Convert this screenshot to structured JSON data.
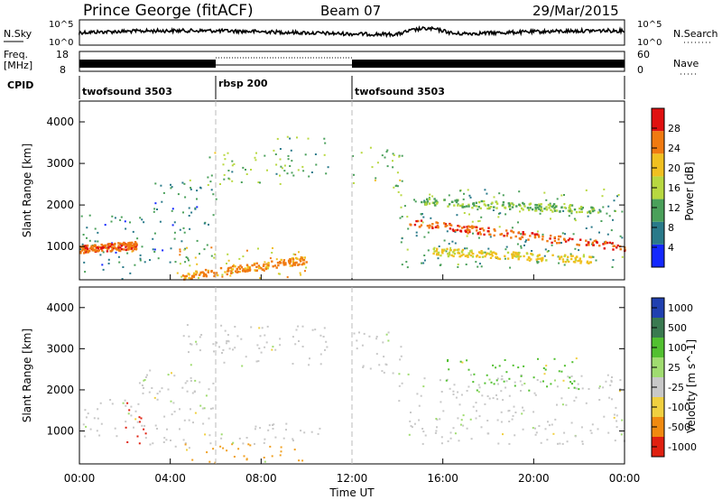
{
  "header": {
    "station": "Prince George (fitACF)",
    "beam": "Beam 07",
    "date": "29/Mar/2015"
  },
  "top_panels": {
    "nsky_label": "N.Sky",
    "nsky_ticks": [
      "10^5",
      "10^0"
    ],
    "nsearch_label": "N.Search",
    "freq_label": "Freq.",
    "freq_unit": "[MHz]",
    "freq_ticks": [
      "18",
      "8"
    ],
    "nave_label": "Nave",
    "nave_ticks": [
      "60",
      "0"
    ],
    "cpid_label": "CPID",
    "cpid_segments": [
      {
        "label": "twofsound 3503",
        "start_h": 0,
        "end_h": 6
      },
      {
        "label": "rbsp 200",
        "start_h": 6,
        "end_h": 12
      },
      {
        "label": "twofsound 3503",
        "start_h": 12,
        "end_h": 24
      }
    ]
  },
  "chart_data": [
    {
      "type": "heatmap",
      "title": "Power",
      "xlabel": "",
      "ylabel": "Slant Range [km]",
      "xlim": [
        0,
        24
      ],
      "ylim": [
        200,
        4500
      ],
      "y_ticks": [
        "1000",
        "2000",
        "3000",
        "4000"
      ],
      "colorbar": {
        "label": "Power [dB]",
        "ticks": [
          "4",
          "8",
          "12",
          "16",
          "20",
          "24",
          "28"
        ],
        "range": [
          0,
          32
        ],
        "colors": [
          "#1428ff",
          "#2a7a8a",
          "#4aa05a",
          "#b8d840",
          "#f0c020",
          "#f07a10",
          "#e01010"
        ]
      },
      "scatter_regions": [
        {
          "t0": 0.0,
          "t1": 2.6,
          "r0": 200,
          "r1": 1800,
          "level": 8
        },
        {
          "t0": 0.0,
          "t1": 2.6,
          "r0": 900,
          "r1": 1100,
          "level": 24
        },
        {
          "t0": 2.6,
          "t1": 6.0,
          "r0": 600,
          "r1": 2600,
          "level": 9
        },
        {
          "t0": 4.5,
          "t1": 9.5,
          "r0": 2500,
          "r1": 3300,
          "level": 14
        },
        {
          "t0": 8.5,
          "t1": 11.0,
          "r0": 2700,
          "r1": 3700,
          "level": 12
        },
        {
          "t0": 4.2,
          "t1": 10.0,
          "r0": 250,
          "r1": 1000,
          "level": 20
        },
        {
          "t0": 12.0,
          "t1": 14.3,
          "r0": 2400,
          "r1": 3500,
          "level": 14
        },
        {
          "t0": 14.0,
          "t1": 24.0,
          "r0": 1600,
          "r1": 2400,
          "level": 12
        },
        {
          "t0": 14.0,
          "t1": 24.0,
          "r0": 500,
          "r1": 1500,
          "level": 10
        }
      ],
      "bands": [
        {
          "t0": 0.0,
          "t1": 2.5,
          "r0": 950,
          "r1": 1050,
          "level": 26
        },
        {
          "t0": 4.5,
          "t1": 10.0,
          "r0": 300,
          "r1": 700,
          "level": 24
        },
        {
          "t0": 14.5,
          "t1": 24.0,
          "r0": 1600,
          "r1": 1000,
          "level": 27
        },
        {
          "t0": 15.5,
          "t1": 22.5,
          "r0": 900,
          "r1": 700,
          "level": 20
        },
        {
          "t0": 15.0,
          "t1": 23.0,
          "r0": 2100,
          "r1": 1900,
          "level": 14
        }
      ]
    },
    {
      "type": "heatmap",
      "title": "Velocity",
      "xlabel": "Time UT",
      "ylabel": "Slant Range [km]",
      "xlim": [
        0,
        24
      ],
      "ylim": [
        200,
        4500
      ],
      "x_ticks": [
        "00:00",
        "04:00",
        "08:00",
        "12:00",
        "16:00",
        "20:00",
        "00:00"
      ],
      "y_ticks": [
        "1000",
        "2000",
        "3000",
        "4000"
      ],
      "colorbar": {
        "label": "Velocity [m s^-1]",
        "ticks": [
          "1000",
          "500",
          "100",
          "25",
          "-25",
          "-100",
          "-500",
          "-1000"
        ],
        "colors": [
          "#2040b0",
          "#3a7a50",
          "#52c030",
          "#a0dc70",
          "#c8c8c8",
          "#f0d040",
          "#f08a10",
          "#e02010"
        ]
      },
      "scatter_regions": [
        {
          "t0": 0.0,
          "t1": 2.6,
          "r0": 800,
          "r1": 1800,
          "level": "#c8c8c8"
        },
        {
          "t0": 2.0,
          "t1": 3.0,
          "r0": 600,
          "r1": 1700,
          "level": "#e02010"
        },
        {
          "t0": 2.6,
          "t1": 6.0,
          "r0": 600,
          "r1": 2500,
          "level": "#c8c8c8"
        },
        {
          "t0": 4.5,
          "t1": 11.0,
          "r0": 2600,
          "r1": 3600,
          "level": "#c8c8c8"
        },
        {
          "t0": 4.5,
          "t1": 10.0,
          "r0": 250,
          "r1": 700,
          "level": "#f0a020"
        },
        {
          "t0": 6.0,
          "t1": 11.0,
          "r0": 700,
          "r1": 1200,
          "level": "#c8c8c8"
        },
        {
          "t0": 12.0,
          "t1": 14.3,
          "r0": 2400,
          "r1": 3500,
          "level": "#c8c8c8"
        },
        {
          "t0": 14.0,
          "t1": 24.0,
          "r0": 700,
          "r1": 2400,
          "level": "#c8c8c8"
        },
        {
          "t0": 16.0,
          "t1": 22.0,
          "r0": 2000,
          "r1": 2800,
          "level": "#52c030"
        }
      ]
    }
  ]
}
